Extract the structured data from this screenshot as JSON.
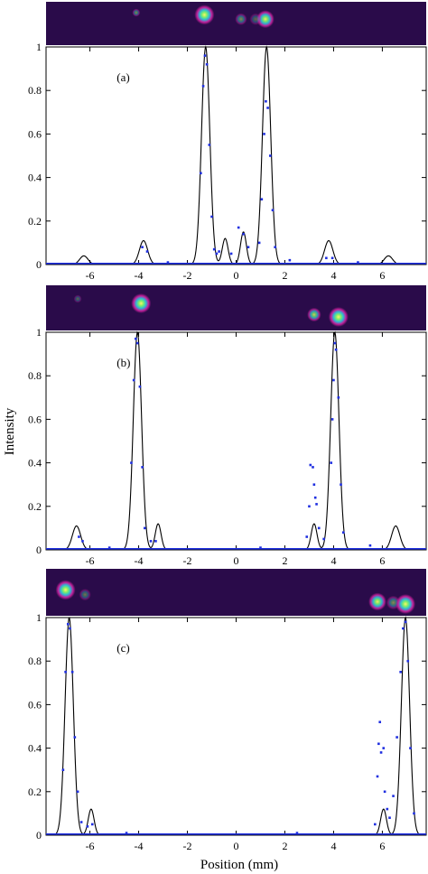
{
  "figure": {
    "xlabel": "Position (mm)",
    "ylabel": "Intensity",
    "colors": {
      "strip_background": "#2a0b4a",
      "theory_line": "#000000",
      "measured_points": "#1f2fe0",
      "spot_core": "#7cf06a",
      "spot_halo": "#c21f9a"
    }
  },
  "chart_data": [
    {
      "type": "line",
      "panel_label": "(a)",
      "xlim": [
        -7.8,
        7.8
      ],
      "ylim": [
        0,
        1
      ],
      "xticks": [
        -6,
        -4,
        -2,
        0,
        2,
        4,
        6
      ],
      "xtick_labels": [
        "-6",
        "-4",
        "-2",
        "0",
        "2",
        "4",
        "6"
      ],
      "yticks": [
        0,
        0.2,
        0.4,
        0.6,
        0.8,
        1
      ],
      "ytick_labels": [
        "0",
        "0.2",
        "0.4",
        "0.6",
        "0.8",
        "1"
      ],
      "peaks": [
        {
          "x": -6.25,
          "height": 0.04,
          "width": 0.17
        },
        {
          "x": -3.8,
          "height": 0.11,
          "width": 0.17
        },
        {
          "x": -1.25,
          "height": 1.0,
          "width": 0.17
        },
        {
          "x": -0.45,
          "height": 0.12,
          "width": 0.12
        },
        {
          "x": 0.3,
          "height": 0.15,
          "width": 0.12
        },
        {
          "x": 1.25,
          "height": 1.0,
          "width": 0.17
        },
        {
          "x": 3.8,
          "height": 0.11,
          "width": 0.17
        },
        {
          "x": 6.25,
          "height": 0.04,
          "width": 0.17
        }
      ],
      "points": [
        [
          -1.45,
          0.42
        ],
        [
          -1.35,
          0.82
        ],
        [
          -1.28,
          0.96
        ],
        [
          -1.2,
          0.92
        ],
        [
          -1.1,
          0.55
        ],
        [
          -1.0,
          0.22
        ],
        [
          -0.9,
          0.07
        ],
        [
          -0.8,
          0.05
        ],
        [
          -0.7,
          0.06
        ],
        [
          -0.2,
          0.05
        ],
        [
          0.1,
          0.17
        ],
        [
          0.3,
          0.14
        ],
        [
          0.5,
          0.08
        ],
        [
          0.95,
          0.1
        ],
        [
          1.05,
          0.3
        ],
        [
          1.15,
          0.6
        ],
        [
          1.22,
          0.75
        ],
        [
          1.3,
          0.72
        ],
        [
          1.4,
          0.5
        ],
        [
          1.5,
          0.25
        ],
        [
          1.6,
          0.08
        ],
        [
          -3.85,
          0.08
        ],
        [
          -3.65,
          0.06
        ],
        [
          3.7,
          0.03
        ],
        [
          3.95,
          0.03
        ],
        [
          2.2,
          0.02
        ],
        [
          -2.8,
          0.01
        ],
        [
          5.0,
          0.01
        ]
      ],
      "spots": [
        {
          "x": -4.1,
          "y": 0.25,
          "r": 0.2,
          "strength": 0.5
        },
        {
          "x": -1.3,
          "y": 0.3,
          "r": 0.5,
          "strength": 1.0
        },
        {
          "x": 0.2,
          "y": 0.4,
          "r": 0.3,
          "strength": 0.5
        },
        {
          "x": 1.2,
          "y": 0.4,
          "r": 0.45,
          "strength": 0.95
        },
        {
          "x": 0.8,
          "y": 0.4,
          "r": 0.3,
          "strength": 0.35
        }
      ]
    },
    {
      "type": "line",
      "panel_label": "(b)",
      "xlim": [
        -7.8,
        7.8
      ],
      "ylim": [
        0,
        1
      ],
      "xticks": [
        -6,
        -4,
        -2,
        0,
        2,
        4,
        6
      ],
      "xtick_labels": [
        "-6",
        "-4",
        "-2",
        "0",
        "2",
        "4",
        "6"
      ],
      "yticks": [
        0,
        0.2,
        0.4,
        0.6,
        0.8,
        1
      ],
      "ytick_labels": [
        "0",
        "0.2",
        "0.4",
        "0.6",
        "0.8",
        "1"
      ],
      "peaks": [
        {
          "x": -6.55,
          "height": 0.11,
          "width": 0.17
        },
        {
          "x": -4.05,
          "height": 1.0,
          "width": 0.17
        },
        {
          "x": -3.2,
          "height": 0.12,
          "width": 0.12
        },
        {
          "x": 3.2,
          "height": 0.12,
          "width": 0.12
        },
        {
          "x": 4.05,
          "height": 1.0,
          "width": 0.17
        },
        {
          "x": 6.55,
          "height": 0.11,
          "width": 0.17
        }
      ],
      "points": [
        [
          -4.3,
          0.4
        ],
        [
          -4.2,
          0.78
        ],
        [
          -4.12,
          0.97
        ],
        [
          -4.05,
          0.95
        ],
        [
          -3.95,
          0.75
        ],
        [
          -3.85,
          0.38
        ],
        [
          -3.75,
          0.1
        ],
        [
          -3.5,
          0.04
        ],
        [
          -3.3,
          0.04
        ],
        [
          -6.45,
          0.06
        ],
        [
          -6.3,
          0.04
        ],
        [
          2.9,
          0.06
        ],
        [
          3.0,
          0.2
        ],
        [
          3.05,
          0.39
        ],
        [
          3.15,
          0.38
        ],
        [
          3.2,
          0.3
        ],
        [
          3.25,
          0.24
        ],
        [
          3.3,
          0.21
        ],
        [
          3.4,
          0.1
        ],
        [
          3.6,
          0.05
        ],
        [
          3.9,
          0.4
        ],
        [
          3.95,
          0.6
        ],
        [
          4.0,
          0.78
        ],
        [
          4.05,
          0.95
        ],
        [
          4.1,
          0.92
        ],
        [
          4.2,
          0.7
        ],
        [
          4.3,
          0.3
        ],
        [
          4.4,
          0.08
        ],
        [
          5.5,
          0.02
        ],
        [
          -5.2,
          0.01
        ],
        [
          1.0,
          0.01
        ]
      ],
      "spots": [
        {
          "x": -6.5,
          "y": 0.3,
          "r": 0.2,
          "strength": 0.35
        },
        {
          "x": -3.9,
          "y": 0.4,
          "r": 0.5,
          "strength": 1.0
        },
        {
          "x": 3.2,
          "y": 0.65,
          "r": 0.35,
          "strength": 0.8
        },
        {
          "x": 4.2,
          "y": 0.7,
          "r": 0.5,
          "strength": 1.0
        }
      ]
    },
    {
      "type": "line",
      "panel_label": "(c)",
      "xlim": [
        -7.8,
        7.8
      ],
      "ylim": [
        0,
        1
      ],
      "xticks": [
        -6,
        -4,
        -2,
        0,
        2,
        4,
        6
      ],
      "xtick_labels": [
        "-6",
        "-4",
        "-2",
        "0",
        "2",
        "4",
        "6"
      ],
      "yticks": [
        0,
        0.2,
        0.4,
        0.6,
        0.8,
        1
      ],
      "ytick_labels": [
        "0",
        "0.2",
        "0.4",
        "0.6",
        "0.8",
        "1"
      ],
      "peaks": [
        {
          "x": -6.85,
          "height": 1.0,
          "width": 0.17
        },
        {
          "x": -5.95,
          "height": 0.12,
          "width": 0.12
        },
        {
          "x": 6.05,
          "height": 0.12,
          "width": 0.12
        },
        {
          "x": 6.95,
          "height": 1.0,
          "width": 0.17
        }
      ],
      "points": [
        [
          -7.1,
          0.3
        ],
        [
          -7.0,
          0.75
        ],
        [
          -6.9,
          0.97
        ],
        [
          -6.82,
          0.95
        ],
        [
          -6.72,
          0.75
        ],
        [
          -6.62,
          0.45
        ],
        [
          -6.5,
          0.2
        ],
        [
          -6.35,
          0.06
        ],
        [
          -6.1,
          0.04
        ],
        [
          -5.9,
          0.05
        ],
        [
          5.7,
          0.05
        ],
        [
          5.8,
          0.27
        ],
        [
          5.85,
          0.42
        ],
        [
          5.9,
          0.52
        ],
        [
          5.95,
          0.38
        ],
        [
          6.05,
          0.4
        ],
        [
          6.1,
          0.2
        ],
        [
          6.2,
          0.12
        ],
        [
          6.3,
          0.08
        ],
        [
          6.45,
          0.18
        ],
        [
          6.6,
          0.45
        ],
        [
          6.75,
          0.75
        ],
        [
          6.85,
          0.95
        ],
        [
          6.95,
          0.98
        ],
        [
          7.05,
          0.8
        ],
        [
          7.15,
          0.4
        ],
        [
          7.3,
          0.1
        ],
        [
          -4.5,
          0.01
        ],
        [
          2.5,
          0.01
        ]
      ],
      "spots": [
        {
          "x": -7.0,
          "y": 0.45,
          "r": 0.5,
          "strength": 1.0
        },
        {
          "x": -6.2,
          "y": 0.55,
          "r": 0.3,
          "strength": 0.4
        },
        {
          "x": 5.8,
          "y": 0.7,
          "r": 0.45,
          "strength": 0.95
        },
        {
          "x": 6.45,
          "y": 0.72,
          "r": 0.35,
          "strength": 0.5
        },
        {
          "x": 6.95,
          "y": 0.75,
          "r": 0.5,
          "strength": 1.0
        }
      ]
    }
  ]
}
